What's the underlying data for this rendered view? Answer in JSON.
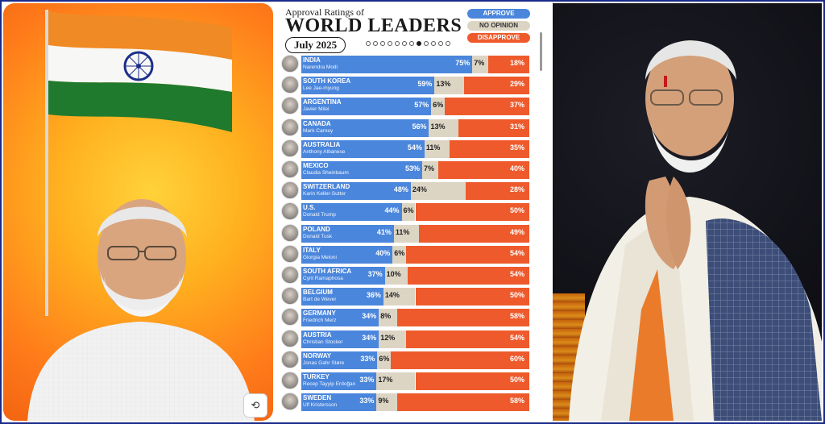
{
  "header": {
    "kicker": "Approval Ratings of",
    "title": "WORLD LEADERS",
    "date": "July 2025"
  },
  "legend": {
    "approve": "APPROVE",
    "no_opinion": "NO OPINION",
    "disapprove": "DISAPPROVE"
  },
  "colors": {
    "approve": "#4a86dc",
    "no_opinion": "#ddd5c4",
    "disapprove": "#ee5a2b",
    "background_left": "#ff8a1a"
  },
  "chart_data": {
    "type": "bar",
    "stacked": true,
    "orientation": "horizontal",
    "title": "WORLD LEADERS",
    "subtitle": "Approval Ratings of",
    "date": "July 2025",
    "categories": [
      "INDIA",
      "SOUTH KOREA",
      "ARGENTINA",
      "CANADA",
      "AUSTRALIA",
      "MEXICO",
      "SWITZERLAND",
      "U.S.",
      "POLAND",
      "ITALY",
      "SOUTH AFRICA",
      "BELGIUM",
      "GERMANY",
      "AUSTRIA",
      "NORWAY",
      "TURKEY",
      "SWEDEN"
    ],
    "leaders": [
      "Narendra Modi",
      "Lee Jae-myung",
      "Javier Milei",
      "Mark Carney",
      "Anthony Albanese",
      "Claudia Sheinbaum",
      "Karin Keller-Sutter",
      "Donald Trump",
      "Donald Tusk",
      "Giorgia Meloni",
      "Cyril Ramaphosa",
      "Bart de Wever",
      "Friedrich Merz",
      "Christian Stocker",
      "Jonas Gahr Støre",
      "Recep Tayyip Erdoğan",
      "Ulf Kristersson"
    ],
    "series": [
      {
        "name": "APPROVE",
        "values": [
          75,
          59,
          57,
          56,
          54,
          53,
          48,
          44,
          41,
          40,
          37,
          36,
          34,
          34,
          33,
          33,
          33
        ]
      },
      {
        "name": "NO OPINION",
        "values": [
          7,
          13,
          6,
          13,
          11,
          7,
          24,
          6,
          11,
          6,
          10,
          14,
          8,
          12,
          6,
          17,
          9
        ]
      },
      {
        "name": "DISAPPROVE",
        "values": [
          18,
          29,
          37,
          31,
          35,
          40,
          28,
          50,
          49,
          54,
          54,
          50,
          58,
          54,
          60,
          50,
          58
        ]
      }
    ],
    "xlim": [
      0,
      100
    ],
    "unit": "%"
  }
}
